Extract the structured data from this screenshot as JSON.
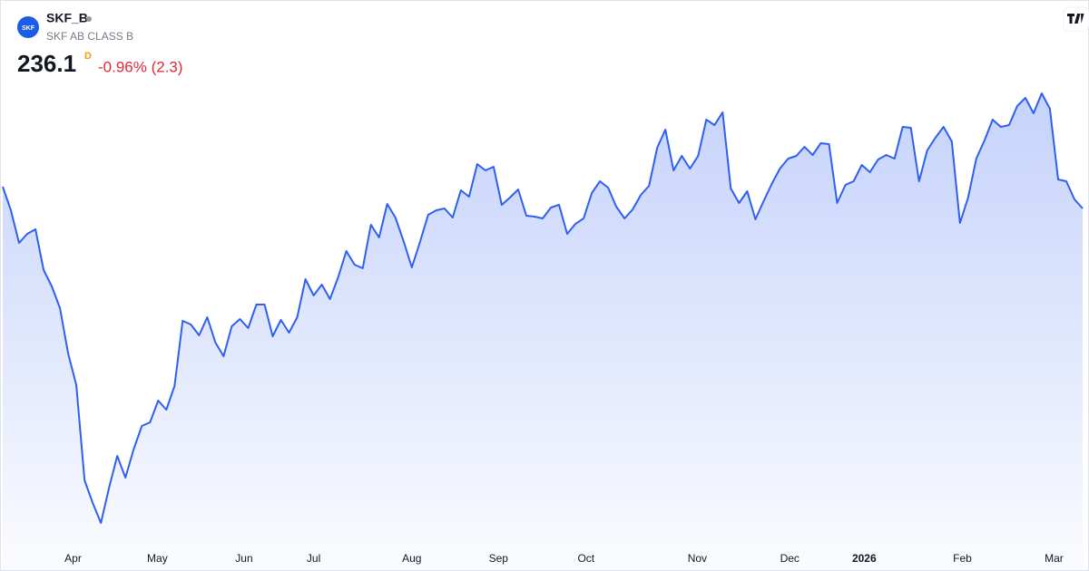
{
  "chart_data": {
    "type": "area",
    "logo_text": "SKF",
    "symbol": "SKF_B",
    "description": "SKF AB CLASS B",
    "last_price": 236.1,
    "interval": "D",
    "change": "-0.96% (2.3)",
    "color": "#2f5ff0",
    "values": [
      240.9,
      235.7,
      228.5,
      230.5,
      231.5,
      222.5,
      218.9,
      214.1,
      204.1,
      197.1,
      176.1,
      171.1,
      166.7,
      174.5,
      181.5,
      176.7,
      182.9,
      188.1,
      188.9,
      193.7,
      191.7,
      196.9,
      211.3,
      210.5,
      208.1,
      212.1,
      206.5,
      203.5,
      210.1,
      211.7,
      209.7,
      214.9,
      214.9,
      207.9,
      211.5,
      208.7,
      212.1,
      220.5,
      216.9,
      219.3,
      216.1,
      220.9,
      226.7,
      223.7,
      222.9,
      232.5,
      229.7,
      237.1,
      234.1,
      228.9,
      223.1,
      228.7,
      234.7,
      235.7,
      236.1,
      234.1,
      240.1,
      238.7,
      245.9,
      244.5,
      245.3,
      236.9,
      238.5,
      240.3,
      234.5,
      234.3,
      233.9,
      236.3,
      236.9,
      230.5,
      232.7,
      233.9,
      239.5,
      242.1,
      240.7,
      236.5,
      233.9,
      235.9,
      239.1,
      241.1,
      249.5,
      253.5,
      244.5,
      247.7,
      244.9,
      247.7,
      255.7,
      254.5,
      257.3,
      240.5,
      237.3,
      239.9,
      233.7,
      237.7,
      241.5,
      244.9,
      247.1,
      247.7,
      249.7,
      247.9,
      250.5,
      250.3,
      237.3,
      241.3,
      242.1,
      245.7,
      244.1,
      246.9,
      247.9,
      247.1,
      254.1,
      253.9,
      242.1,
      248.9,
      251.7,
      254.1,
      250.9,
      232.9,
      238.5,
      247.1,
      251.1,
      255.7,
      254.1,
      254.5,
      258.7,
      260.5,
      257.1,
      261.5,
      258.1,
      242.5,
      242.1,
      238.1,
      236.1
    ],
    "ylim": [
      162.1,
      282.1
    ],
    "xticks": [
      {
        "value": 8.6,
        "label": "Apr"
      },
      {
        "value": 18.9,
        "label": "May"
      },
      {
        "value": 29.5,
        "label": "Jun"
      },
      {
        "value": 38,
        "label": "Jul"
      },
      {
        "value": 50,
        "label": "Aug"
      },
      {
        "value": 60.6,
        "label": "Sep"
      },
      {
        "value": 71.3,
        "label": "Oct"
      },
      {
        "value": 84.9,
        "label": "Nov"
      },
      {
        "value": 96.2,
        "label": "Dec"
      },
      {
        "value": 105.3,
        "label": "2026"
      },
      {
        "value": 117.3,
        "label": "Feb"
      },
      {
        "value": 128.5,
        "label": "Mar"
      }
    ]
  }
}
